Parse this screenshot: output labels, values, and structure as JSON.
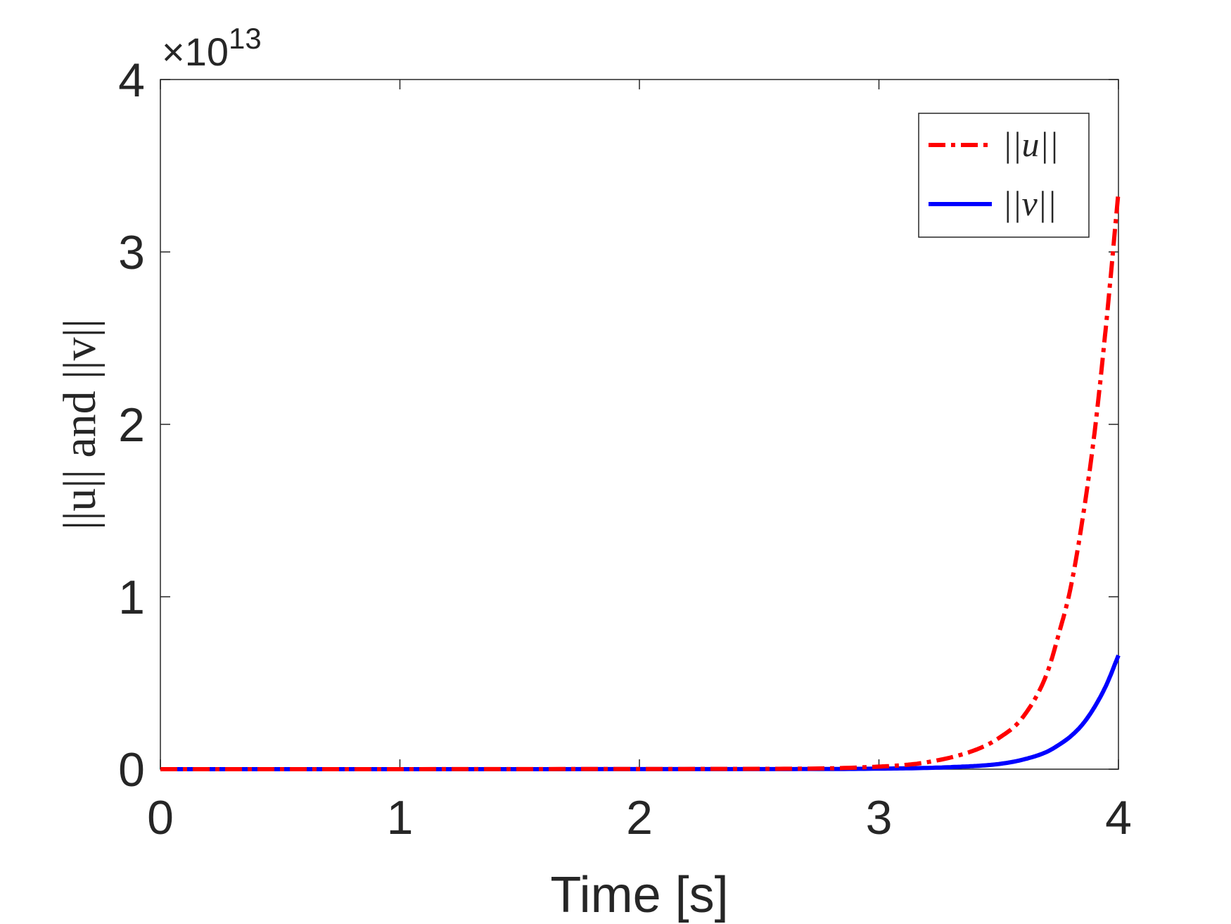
{
  "chart_data": {
    "type": "line",
    "xlabel": "Time [s]",
    "ylabel": "||u|| and ||v||",
    "xlim": [
      0,
      4
    ],
    "ylim": [
      0,
      4
    ],
    "y_exponent_label": "×10",
    "y_exponent_power": "13",
    "xticks": [
      0,
      1,
      2,
      3,
      4
    ],
    "xtick_labels": [
      "0",
      "1",
      "2",
      "3",
      "4"
    ],
    "yticks": [
      0,
      1,
      2,
      3,
      4
    ],
    "ytick_labels": [
      "0",
      "1",
      "2",
      "3",
      "4"
    ],
    "grid": false,
    "legend_position": "top-right",
    "colors": {
      "u": "#ff0000",
      "v": "#0000ff",
      "axes": "#262626"
    },
    "series": [
      {
        "name": "||u||",
        "style": "dash-dot",
        "color": "#ff0000",
        "x": [
          0,
          2.5,
          3.0,
          3.2,
          3.4,
          3.5,
          3.6,
          3.7,
          3.75,
          3.8,
          3.85,
          3.9,
          3.95,
          4.0
        ],
        "y": [
          0,
          0.002,
          0.015,
          0.04,
          0.11,
          0.18,
          0.3,
          0.55,
          0.78,
          1.05,
          1.45,
          1.95,
          2.6,
          3.35
        ]
      },
      {
        "name": "||v||",
        "style": "solid",
        "color": "#0000ff",
        "x": [
          0,
          2.5,
          3.0,
          3.3,
          3.5,
          3.6,
          3.7,
          3.75,
          3.8,
          3.85,
          3.9,
          3.95,
          4.0
        ],
        "y": [
          0,
          0.0005,
          0.003,
          0.012,
          0.03,
          0.055,
          0.1,
          0.14,
          0.19,
          0.26,
          0.36,
          0.49,
          0.66
        ]
      }
    ]
  }
}
